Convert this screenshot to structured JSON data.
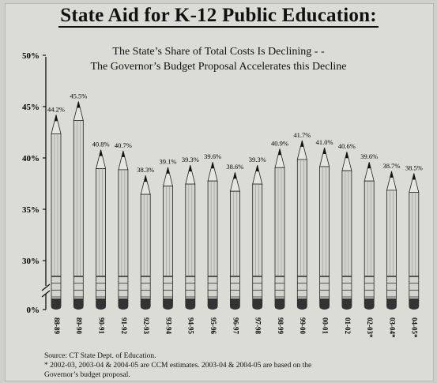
{
  "title": "State Aid for K-12 Public Education:",
  "subtitle_lines": [
    "The State’s Share of Total Costs Is Declining - -",
    "The Governor’s Budget Proposal Accelerates this Decline"
  ],
  "footnotes": {
    "source": "Source: CT State Dept. of Education.",
    "note_line1": "* 2002-03, 2003-04 & 2004-05 are CCM estimates. 2003-04 & 2004-05 are based on the",
    "note_line2": "Governor’s budget proposal."
  },
  "chart_data": {
    "type": "bar",
    "title": "State Aid for K-12 Public Education:",
    "subtitle": "The State’s Share of Total Costs Is Declining - - The Governor’s Budget Proposal Accelerates this Decline",
    "categories": [
      "88-89",
      "89-90",
      "90-91",
      "91-92",
      "92-93",
      "93-94",
      "94-95",
      "95-96",
      "96-97",
      "97-98",
      "98-99",
      "99-00",
      "00-01",
      "01-02",
      "02-03*",
      "03-04*",
      "04-05*"
    ],
    "values": [
      44.2,
      45.5,
      40.8,
      40.7,
      38.3,
      39.1,
      39.3,
      39.6,
      38.6,
      39.3,
      40.9,
      41.7,
      41.0,
      40.6,
      39.6,
      38.7,
      38.5
    ],
    "value_labels": [
      "44.2%",
      "45.5%",
      "40.8%",
      "40.7%",
      "38.3%",
      "39.1%",
      "39.3%",
      "39.6%",
      "38.6%",
      "39.3%",
      "40.9%",
      "41.7%",
      "41.0%",
      "40.6%",
      "39.6%",
      "38.7%",
      "38.5%"
    ],
    "y_ticks": [
      0,
      30,
      35,
      40,
      45,
      50
    ],
    "y_tick_labels": [
      "0%",
      "30%",
      "35%",
      "40%",
      "45%",
      "50%"
    ],
    "ylim": [
      0,
      50
    ],
    "axis_break": true,
    "mark_style": "pencil",
    "colors": {
      "pencil_body": "#d4d4cf",
      "pencil_tip": "#111111",
      "pencil_eraser": "#333333",
      "wood": "#e6e6e0"
    }
  }
}
